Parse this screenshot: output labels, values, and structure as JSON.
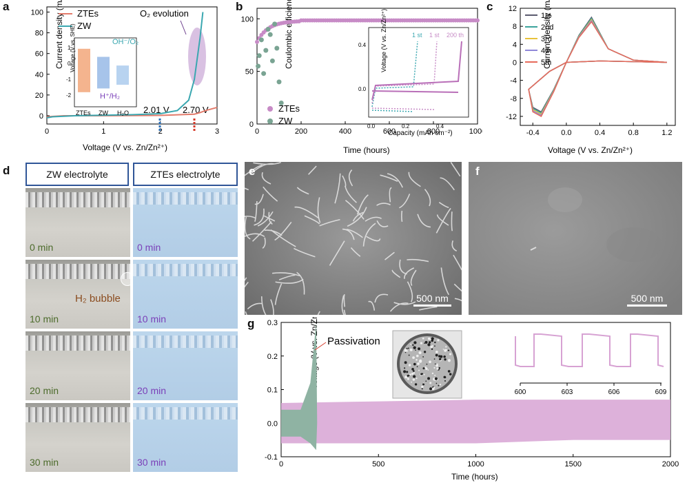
{
  "panels": {
    "a": {
      "label": "a",
      "xlabel": "Voltage (V vs. Zn/Zn²⁺)",
      "ylabel": "Current density (mA cm⁻²)",
      "legend": [
        "ZTEs",
        "ZW"
      ],
      "annotation_o2": "O₂ evolution",
      "annot_201": "2.01 V",
      "annot_270": "2.70 V",
      "xticks": [
        "0",
        "1",
        "2",
        "3"
      ],
      "yticks": [
        "0",
        "20",
        "40",
        "60",
        "80",
        "100"
      ],
      "inset": {
        "ylabel": "Voltage (V vs. SHE)",
        "yticks": [
          "1",
          "0",
          "-1",
          "-2"
        ],
        "categories": [
          "ZTEs",
          "ZW",
          "H₂O"
        ],
        "label_top": "OH⁻/O₂",
        "label_bottom": "H⁺/H₂"
      }
    },
    "b": {
      "label": "b",
      "xlabel": "Time (hours)",
      "ylabel": "Coulombic efficiency (%)",
      "xticks": [
        "0",
        "200",
        "400",
        "600",
        "800",
        "1000"
      ],
      "yticks": [
        "0",
        "50",
        "100"
      ],
      "legend": [
        "ZTEs",
        "ZW"
      ],
      "inset": {
        "xlabel": "Capacity (mAh cm⁻²)",
        "ylabel": "Voltage (V vs. Zn/Zn²⁺)",
        "xticks": [
          "0.0",
          "0.2",
          "0.4"
        ],
        "yticks": [
          "0.4",
          "0.0"
        ],
        "labels": [
          "1 st",
          "1 st",
          "200 th"
        ]
      }
    },
    "c": {
      "label": "c",
      "xlabel": "Voltage (V vs. Zn/Zn²⁺)",
      "ylabel": "Current density (mA cm⁻²)",
      "xticks": [
        "-0.4",
        "0.0",
        "0.4",
        "0.8",
        "1.2"
      ],
      "yticks": [
        "12",
        "8",
        "4",
        "0",
        "-4",
        "-8",
        "-12"
      ],
      "legend": [
        "1st",
        "2nd",
        "3rd",
        "4th",
        "5th"
      ],
      "legend_colors": [
        "#5a5a6e",
        "#3aa39b",
        "#e8c23a",
        "#8e86d8",
        "#e66a5a"
      ]
    },
    "d": {
      "label": "d",
      "header_zw": "ZW electrolyte",
      "header_ztes": "ZTEs electrolyte",
      "times": [
        "0 min",
        "10 min",
        "20 min",
        "30 min"
      ],
      "bubble": "H₂ bubble"
    },
    "e": {
      "label": "e",
      "scale": "500 nm"
    },
    "f": {
      "label": "f",
      "scale": "500 nm"
    },
    "g": {
      "label": "g",
      "xlabel": "Time (hours)",
      "ylabel": "Voltage (V vs. Zn/Zn²⁺)",
      "xticks": [
        "0",
        "500",
        "1000",
        "1500",
        "2000"
      ],
      "yticks": [
        "0.3",
        "0.2",
        "0.1",
        "0.0",
        "-0.1"
      ],
      "annotation": "Passivation",
      "inset_xticks": [
        "600",
        "603",
        "606",
        "609"
      ]
    }
  },
  "chart_data": [
    {
      "panel": "a",
      "type": "line",
      "series": [
        {
          "name": "ZTEs",
          "x": [
            0,
            0.3,
            1,
            2,
            2.6,
            2.7,
            2.8,
            3.0
          ],
          "y": [
            -1,
            0,
            0,
            0.3,
            1.5,
            3,
            5,
            8
          ]
        },
        {
          "name": "ZW",
          "x": [
            0,
            0.1,
            0.5,
            1,
            1.5,
            2.0,
            2.3,
            2.5,
            2.6,
            2.7,
            2.75
          ],
          "y": [
            -2,
            -1,
            0,
            0.5,
            1,
            2,
            5,
            15,
            35,
            75,
            100
          ]
        }
      ],
      "xlim": [
        0,
        3
      ],
      "ylim": [
        -8,
        105
      ]
    },
    {
      "panel": "a-inset",
      "type": "bar",
      "categories": [
        "ZTEs",
        "ZW",
        "H₂O"
      ],
      "series": [
        {
          "values_top": [
            1.9,
            1.25,
            0.55
          ],
          "values_bottom": [
            -1.6,
            -1.3,
            -1.0
          ]
        }
      ],
      "ylim": [
        -2.5,
        2.5
      ]
    },
    {
      "panel": "b",
      "type": "scatter",
      "series": [
        {
          "name": "ZTEs",
          "x": [
            0,
            20,
            50,
            100,
            150,
            200,
            400,
            600,
            800,
            1000
          ],
          "y": [
            78,
            86,
            92,
            95,
            97,
            98,
            98.5,
            99,
            99,
            99
          ]
        },
        {
          "name": "ZW",
          "x": [
            5,
            10,
            20,
            30,
            40,
            50,
            60,
            70,
            80,
            90,
            100,
            110
          ],
          "y": [
            55,
            65,
            80,
            48,
            70,
            90,
            85,
            60,
            95,
            72,
            40,
            20
          ]
        }
      ],
      "xlim": [
        0,
        1000
      ],
      "ylim": [
        0,
        110
      ]
    },
    {
      "panel": "c",
      "type": "line",
      "series": [
        {
          "name": "1st",
          "x": [
            -0.4,
            -0.3,
            -0.15,
            0,
            0.15,
            0.3,
            0.5,
            0.8,
            1.2
          ],
          "y": [
            -10,
            -11,
            -6,
            0,
            6,
            10,
            3,
            0.5,
            0
          ]
        },
        {
          "name": "5th",
          "x": [
            -0.4,
            -0.3,
            -0.15,
            0,
            0.15,
            0.3,
            0.5,
            0.8,
            1.2
          ],
          "y": [
            -11,
            -12,
            -6.5,
            0,
            5.5,
            9,
            3,
            0.5,
            0
          ]
        }
      ],
      "xlim": [
        -0.55,
        1.3
      ],
      "ylim": [
        -14,
        12
      ]
    },
    {
      "panel": "g",
      "type": "area",
      "series": [
        {
          "name": "ZW",
          "x": [
            0,
            100,
            150,
            180,
            185
          ],
          "y_upper": [
            0.04,
            0.04,
            0.12,
            0.3,
            0.0
          ],
          "y_lower": [
            -0.04,
            -0.04,
            -0.06,
            -0.08,
            0.0
          ]
        },
        {
          "name": "ZTEs",
          "x": [
            0,
            500,
            1000,
            1500,
            2000
          ],
          "y_upper": [
            0.06,
            0.065,
            0.07,
            0.07,
            0.07
          ],
          "y_lower": [
            -0.06,
            -0.06,
            -0.06,
            -0.05,
            -0.05
          ]
        }
      ],
      "xlim": [
        0,
        2000
      ],
      "ylim": [
        -0.1,
        0.3
      ]
    }
  ],
  "colors": {
    "ztes_red": "#e37b6b",
    "zw_teal": "#3aa7b0",
    "purple": "#c78bc6",
    "green_grey": "#7aa493",
    "header_blue": "#2f5597",
    "time_green": "#4c6b2b",
    "time_purple": "#7a3fb8",
    "bubble_brown": "#8a4b1e"
  }
}
